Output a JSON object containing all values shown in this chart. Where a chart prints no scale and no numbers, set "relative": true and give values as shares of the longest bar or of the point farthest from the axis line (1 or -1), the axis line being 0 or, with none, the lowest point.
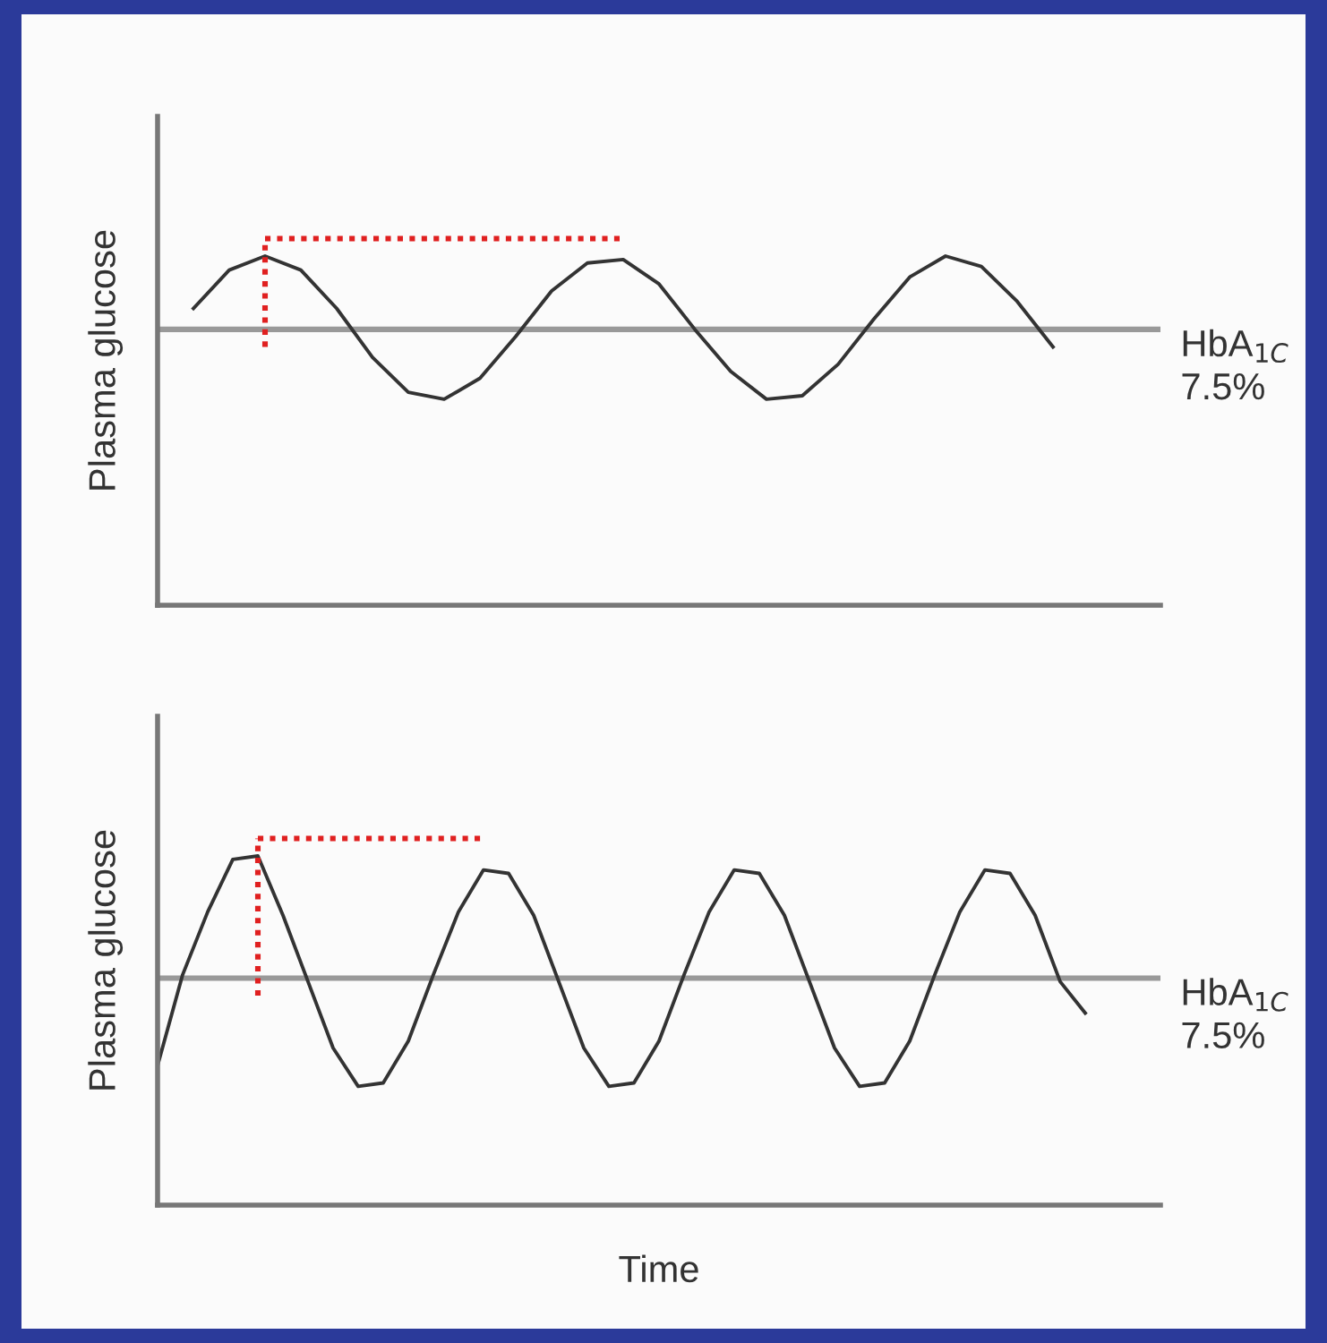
{
  "chart_data": [
    {
      "type": "line",
      "relative": true,
      "ylabel": "Plasma glucose",
      "tick_labels": false,
      "categories": [
        null,
        null,
        null,
        null,
        null,
        null,
        null,
        null,
        null,
        null,
        null,
        null,
        null,
        null,
        null,
        null,
        null,
        null,
        null,
        null,
        null,
        null,
        null,
        null,
        null,
        null,
        null,
        null,
        null
      ],
      "series": [
        {
          "color": "#333333",
          "values": [
            null,
            0.85,
            0.96,
            1.0,
            0.96,
            0.85,
            0.71,
            0.61,
            0.59,
            0.65,
            0.77,
            0.9,
            0.98,
            0.99,
            0.92,
            0.79,
            0.67,
            0.59,
            0.6,
            0.69,
            0.82,
            0.94,
            1.0,
            0.97,
            0.87,
            0.74,
            null,
            null,
            null
          ]
        }
      ],
      "ref_lines": [
        {
          "axis": "y",
          "value": 0.79,
          "label": "HbA$_{1C}$\n7.5%",
          "color": "#999999"
        }
      ]
    },
    {
      "type": "line",
      "relative": true,
      "ylabel": "Plasma glucose",
      "xlabel": "Time",
      "tick_labels": false,
      "categories": [
        null,
        null,
        null,
        null,
        null,
        null,
        null,
        null,
        null,
        null,
        null,
        null,
        null,
        null,
        null,
        null,
        null,
        null,
        null,
        null,
        null,
        null,
        null,
        null,
        null,
        null,
        null,
        null,
        null,
        null,
        null,
        null,
        null,
        null,
        null,
        null,
        null,
        null,
        null,
        null,
        null
      ],
      "series": [
        {
          "color": "#333333",
          "values": [
            0.4,
            0.66,
            0.84,
            0.99,
            1.0,
            0.83,
            0.64,
            0.45,
            0.34,
            0.35,
            0.47,
            0.66,
            0.84,
            0.96,
            0.95,
            0.83,
            0.64,
            0.45,
            0.34,
            0.35,
            0.47,
            0.66,
            0.84,
            0.96,
            0.95,
            0.83,
            0.64,
            0.45,
            0.34,
            0.35,
            0.47,
            0.66,
            0.84,
            0.96,
            0.95,
            0.83,
            0.64,
            0.55,
            null,
            null,
            null
          ]
        }
      ],
      "ref_lines": [
        {
          "axis": "y",
          "value": 0.65,
          "label": "HbA$_{1C}$\n7.5%",
          "color": "#999999"
        }
      ]
    }
  ]
}
